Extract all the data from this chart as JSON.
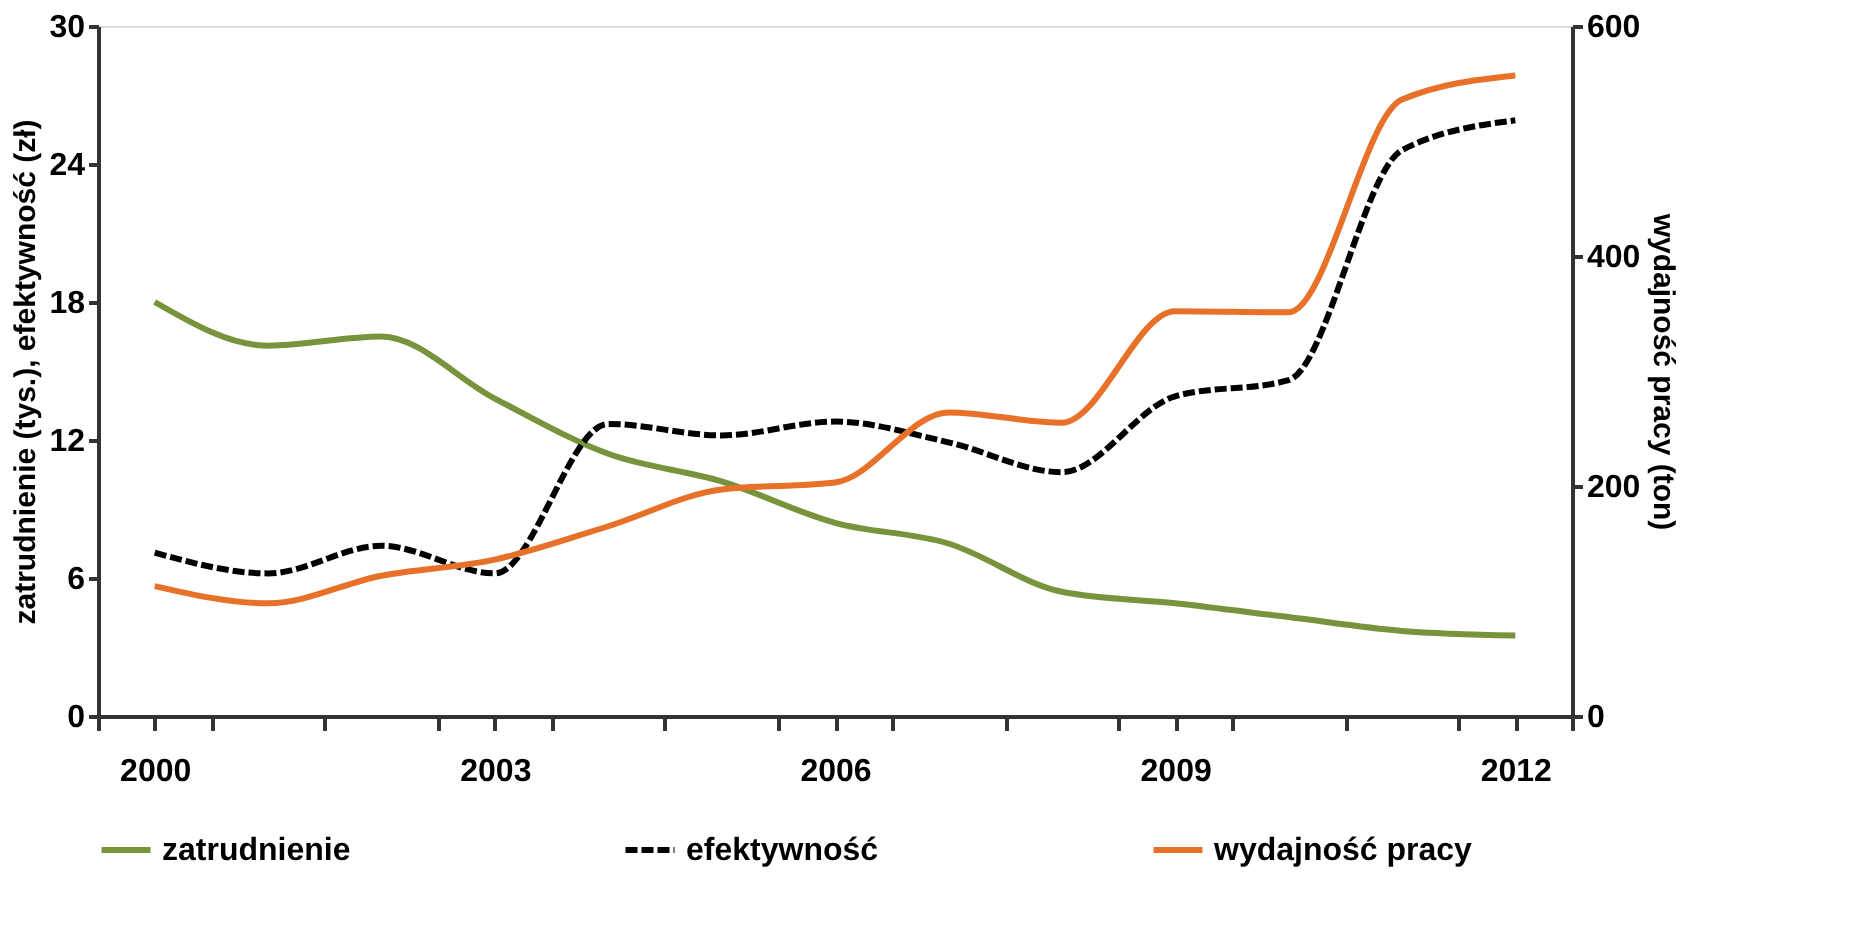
{
  "chart_data": {
    "type": "line",
    "ylabel": "zatrudnienie (tys.), efektywność (zł)",
    "y2label": "wydajność pracy (ton)",
    "x": [
      2000,
      2001,
      2002,
      2003,
      2004,
      2005,
      2006,
      2007,
      2008,
      2009,
      2010,
      2011,
      2012
    ],
    "xlim": [
      1999.5,
      2012.5
    ],
    "xticks": [
      {
        "value": 1999.5,
        "label": null
      },
      2000,
      {
        "value": 2000.5,
        "label": null
      },
      {
        "value": 2001.5,
        "label": null
      },
      {
        "value": 2002.5,
        "label": null
      },
      2003,
      {
        "value": 2003.5,
        "label": null
      },
      {
        "value": 2004.5,
        "label": null
      },
      {
        "value": 2005.5,
        "label": null
      },
      2006,
      {
        "value": 2006.5,
        "label": null
      },
      {
        "value": 2007.5,
        "label": null
      },
      {
        "value": 2008.5,
        "label": null
      },
      2009,
      {
        "value": 2009.5,
        "label": null
      },
      {
        "value": 2010.5,
        "label": null
      },
      {
        "value": 2011.5,
        "label": null
      },
      2012,
      {
        "value": 2012.5,
        "label": null
      }
    ],
    "ylim": [
      0,
      30
    ],
    "yticks": [
      0,
      6,
      12,
      18,
      24,
      30
    ],
    "y2lim": [
      0,
      600
    ],
    "y2ticks": [
      0,
      200,
      400,
      600
    ],
    "series": [
      {
        "name": "zatrudnienie",
        "color": "#77933c",
        "line_style": "solid",
        "values": [
          18.0,
          16.1,
          16.5,
          13.8,
          11.4,
          10.2,
          8.4,
          7.5,
          5.4,
          4.9,
          4.3,
          3.7,
          3.5
        ]
      },
      {
        "name": "efektywność",
        "color": "#000000",
        "line_style": "dashed",
        "values": [
          7.1,
          6.2,
          7.4,
          6.2,
          12.7,
          12.2,
          12.8,
          11.9,
          10.6,
          13.9,
          14.6,
          24.6,
          25.9
        ]
      },
      {
        "name": "wydajność pracy",
        "color": "#e8712a",
        "line_style": "solid",
        "axis": "y2",
        "values": [
          113,
          98,
          122,
          136,
          165,
          197,
          203,
          264,
          255,
          352,
          351,
          536,
          557
        ]
      }
    ],
    "marker": "none",
    "grid": false,
    "legend": "bottom"
  }
}
